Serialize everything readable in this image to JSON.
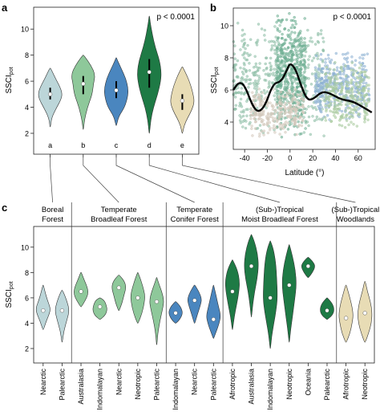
{
  "panels": {
    "a": {
      "label": "a",
      "annotation": "p < 0.0001",
      "ylabel": "SSCI",
      "ylabel_sub": "pot",
      "ylim": [
        2,
        11
      ],
      "yticks": [
        "2",
        "4",
        "6",
        "8",
        "10"
      ],
      "groups": [
        {
          "letter": "a",
          "color": "#bcd6d9",
          "min": 2.5,
          "max": 7.0,
          "median": 5.0,
          "iqr": [
            4.6,
            5.5
          ],
          "shape": [
            [
              2.5,
              0.02
            ],
            [
              3.2,
              0.12
            ],
            [
              4.0,
              0.55
            ],
            [
              4.6,
              0.9
            ],
            [
              5.0,
              1.0
            ],
            [
              5.5,
              0.85
            ],
            [
              6.2,
              0.45
            ],
            [
              6.8,
              0.14
            ],
            [
              7.0,
              0.02
            ]
          ]
        },
        {
          "letter": "b",
          "color": "#8ec89a",
          "min": 2.3,
          "max": 8.0,
          "median": 5.8,
          "iqr": [
            5.0,
            6.4
          ],
          "shape": [
            [
              2.3,
              0.02
            ],
            [
              3.0,
              0.1
            ],
            [
              4.0,
              0.35
            ],
            [
              5.0,
              0.75
            ],
            [
              5.8,
              0.85
            ],
            [
              6.5,
              1.0
            ],
            [
              7.2,
              0.65
            ],
            [
              7.8,
              0.2
            ],
            [
              8.0,
              0.02
            ]
          ]
        },
        {
          "letter": "c",
          "color": "#4a86bf",
          "min": 2.6,
          "max": 7.8,
          "median": 5.3,
          "iqr": [
            4.7,
            6.0
          ],
          "shape": [
            [
              2.6,
              0.02
            ],
            [
              3.3,
              0.2
            ],
            [
              4.0,
              0.7
            ],
            [
              4.8,
              0.95
            ],
            [
              5.4,
              1.0
            ],
            [
              6.2,
              0.8
            ],
            [
              7.0,
              0.4
            ],
            [
              7.6,
              0.1
            ],
            [
              7.8,
              0.02
            ]
          ]
        },
        {
          "letter": "d",
          "color": "#1e7a45",
          "min": 2.0,
          "max": 11.0,
          "median": 6.7,
          "iqr": [
            5.5,
            7.7
          ],
          "shape": [
            [
              2.0,
              0.02
            ],
            [
              3.0,
              0.12
            ],
            [
              4.0,
              0.35
            ],
            [
              5.0,
              0.7
            ],
            [
              6.0,
              0.95
            ],
            [
              6.7,
              1.0
            ],
            [
              7.6,
              0.85
            ],
            [
              8.6,
              0.5
            ],
            [
              9.6,
              0.25
            ],
            [
              10.5,
              0.08
            ],
            [
              11.0,
              0.02
            ]
          ]
        },
        {
          "letter": "e",
          "color": "#e8dcb5",
          "min": 2.0,
          "max": 7.1,
          "median": 4.5,
          "iqr": [
            3.8,
            5.0
          ],
          "shape": [
            [
              2.0,
              0.02
            ],
            [
              2.6,
              0.15
            ],
            [
              3.2,
              0.45
            ],
            [
              3.8,
              0.8
            ],
            [
              4.4,
              1.0
            ],
            [
              5.0,
              0.9
            ],
            [
              5.7,
              0.7
            ],
            [
              6.4,
              0.4
            ],
            [
              7.0,
              0.08
            ],
            [
              7.1,
              0.02
            ]
          ]
        }
      ]
    },
    "b": {
      "label": "b",
      "annotation": "p < 0.0001",
      "ylabel": "SSCI",
      "ylabel_sub": "pot",
      "xlabel": "Latitude (°)",
      "xlim": [
        -50,
        75
      ],
      "ylim": [
        2.3,
        11.1
      ],
      "xticks": [
        -40,
        -20,
        0,
        20,
        40,
        60
      ],
      "yticks": [
        4,
        6,
        8,
        10
      ],
      "trend": [
        [
          -50,
          6.0
        ],
        [
          -45,
          6.5
        ],
        [
          -40,
          6.3
        ],
        [
          -33,
          5.0
        ],
        [
          -28,
          4.6
        ],
        [
          -22,
          5.0
        ],
        [
          -15,
          6.4
        ],
        [
          -8,
          6.5
        ],
        [
          -3,
          7.2
        ],
        [
          0,
          7.7
        ],
        [
          5,
          7.3
        ],
        [
          10,
          6.2
        ],
        [
          15,
          5.4
        ],
        [
          20,
          5.4
        ],
        [
          28,
          5.9
        ],
        [
          35,
          5.8
        ],
        [
          45,
          5.4
        ],
        [
          55,
          5.3
        ],
        [
          65,
          4.9
        ],
        [
          72,
          4.6
        ]
      ],
      "clouds": [
        {
          "color": "#8fbfa8",
          "x": [
            -50,
            30
          ],
          "y": [
            3.0,
            10.5
          ],
          "n": 520
        },
        {
          "color": "#6fae93",
          "x": [
            -12,
            14
          ],
          "y": [
            3.0,
            11.0
          ],
          "n": 420
        },
        {
          "color": "#d4c9bc",
          "x": [
            -35,
            12
          ],
          "y": [
            3.0,
            6.2
          ],
          "n": 260
        },
        {
          "color": "#8fb3d4",
          "x": [
            22,
            70
          ],
          "y": [
            4.0,
            8.6
          ],
          "n": 380
        },
        {
          "color": "#a9cba0",
          "x": [
            30,
            70
          ],
          "y": [
            3.5,
            7.8
          ],
          "n": 260
        }
      ]
    },
    "c": {
      "label": "c",
      "ylabel": "SSCI",
      "ylabel_sub": "pot",
      "ylim": [
        2,
        11
      ],
      "yticks": [
        "2",
        "4",
        "6",
        "8",
        "10"
      ],
      "biomes": [
        {
          "title_lines": [
            "Boreal",
            "Forest"
          ]
        },
        {
          "title_lines": [
            "Temperate",
            "Broadleaf Forest"
          ]
        },
        {
          "title_lines": [
            "Temperate",
            "Conifer Forest"
          ]
        },
        {
          "title_lines": [
            "(Sub-)Tropical",
            "Moist Broadleaf Forest"
          ]
        },
        {
          "title_lines": [
            "(Sub-)Tropical",
            "Woodlands"
          ]
        }
      ],
      "violins": [
        {
          "realm": "Nearctic",
          "biome": 0,
          "color": "#bcd6d9",
          "min": 3.5,
          "max": 7.0,
          "median": 5.0,
          "shape": [
            [
              3.5,
              0.05
            ],
            [
              4.2,
              0.45
            ],
            [
              4.8,
              0.9
            ],
            [
              5.2,
              1.0
            ],
            [
              5.8,
              0.6
            ],
            [
              6.5,
              0.25
            ],
            [
              7.0,
              0.03
            ]
          ]
        },
        {
          "realm": "Palearctic",
          "biome": 0,
          "color": "#bcd6d9",
          "min": 2.5,
          "max": 6.6,
          "median": 5.0,
          "shape": [
            [
              2.5,
              0.03
            ],
            [
              3.4,
              0.25
            ],
            [
              4.3,
              0.7
            ],
            [
              5.0,
              1.0
            ],
            [
              5.7,
              0.7
            ],
            [
              6.3,
              0.3
            ],
            [
              6.6,
              0.03
            ]
          ]
        },
        {
          "realm": "Australasia",
          "biome": 1,
          "color": "#8ec89a",
          "min": 5.3,
          "max": 8.0,
          "median": 6.5,
          "shape": [
            [
              5.3,
              0.05
            ],
            [
              5.8,
              0.6
            ],
            [
              6.3,
              1.0
            ],
            [
              6.8,
              0.9
            ],
            [
              7.4,
              0.45
            ],
            [
              8.0,
              0.05
            ]
          ]
        },
        {
          "realm": "Indomalayan",
          "biome": 1,
          "color": "#8ec89a",
          "min": 4.3,
          "max": 6.0,
          "median": 5.3,
          "shape": [
            [
              4.3,
              0.05
            ],
            [
              4.6,
              0.7
            ],
            [
              5.0,
              1.0
            ],
            [
              5.4,
              0.9
            ],
            [
              5.8,
              0.6
            ],
            [
              6.0,
              0.05
            ]
          ]
        },
        {
          "realm": "Nearctic",
          "biome": 1,
          "color": "#8ec89a",
          "min": 5.0,
          "max": 7.8,
          "median": 6.8,
          "shape": [
            [
              5.0,
              0.05
            ],
            [
              5.6,
              0.45
            ],
            [
              6.2,
              0.7
            ],
            [
              6.8,
              1.0
            ],
            [
              7.3,
              0.8
            ],
            [
              7.8,
              0.05
            ]
          ]
        },
        {
          "realm": "Neotropic",
          "biome": 1,
          "color": "#8ec89a",
          "min": 4.0,
          "max": 8.0,
          "median": 6.0,
          "shape": [
            [
              4.0,
              0.05
            ],
            [
              4.8,
              0.6
            ],
            [
              5.6,
              0.9
            ],
            [
              6.2,
              1.0
            ],
            [
              6.9,
              0.7
            ],
            [
              7.6,
              0.3
            ],
            [
              8.0,
              0.03
            ]
          ]
        },
        {
          "realm": "Palearctic",
          "biome": 1,
          "color": "#8ec89a",
          "min": 2.3,
          "max": 7.6,
          "median": 5.7,
          "shape": [
            [
              2.3,
              0.03
            ],
            [
              3.2,
              0.15
            ],
            [
              4.2,
              0.45
            ],
            [
              5.2,
              0.85
            ],
            [
              5.8,
              1.0
            ],
            [
              6.5,
              0.7
            ],
            [
              7.2,
              0.25
            ],
            [
              7.6,
              0.03
            ]
          ]
        },
        {
          "realm": "Indomalayan",
          "biome": 2,
          "color": "#4a86bf",
          "min": 4.0,
          "max": 5.7,
          "median": 4.8,
          "shape": [
            [
              4.0,
              0.05
            ],
            [
              4.3,
              0.6
            ],
            [
              4.8,
              1.0
            ],
            [
              5.3,
              0.7
            ],
            [
              5.7,
              0.05
            ]
          ]
        },
        {
          "realm": "Nearctic",
          "biome": 2,
          "color": "#4a86bf",
          "min": 4.0,
          "max": 7.0,
          "median": 5.8,
          "shape": [
            [
              4.0,
              0.05
            ],
            [
              4.7,
              0.4
            ],
            [
              5.4,
              0.8
            ],
            [
              5.9,
              1.0
            ],
            [
              6.5,
              0.6
            ],
            [
              7.0,
              0.05
            ]
          ]
        },
        {
          "realm": "Palearctic",
          "biome": 2,
          "color": "#4a86bf",
          "min": 2.8,
          "max": 7.0,
          "median": 4.3,
          "shape": [
            [
              2.8,
              0.03
            ],
            [
              3.3,
              0.35
            ],
            [
              4.0,
              0.8
            ],
            [
              4.6,
              1.0
            ],
            [
              5.3,
              0.7
            ],
            [
              6.2,
              0.35
            ],
            [
              7.0,
              0.03
            ]
          ]
        },
        {
          "realm": "Afrotropic",
          "biome": 3,
          "color": "#1e7a45",
          "min": 3.5,
          "max": 9.0,
          "median": 6.5,
          "shape": [
            [
              3.5,
              0.03
            ],
            [
              4.5,
              0.25
            ],
            [
              5.5,
              0.6
            ],
            [
              6.5,
              0.9
            ],
            [
              7.3,
              1.0
            ],
            [
              8.2,
              0.7
            ],
            [
              9.0,
              0.03
            ]
          ]
        },
        {
          "realm": "Australasia",
          "biome": 3,
          "color": "#1e7a45",
          "min": 4.5,
          "max": 11.0,
          "median": 8.5,
          "shape": [
            [
              4.5,
              0.03
            ],
            [
              5.5,
              0.2
            ],
            [
              6.5,
              0.45
            ],
            [
              7.5,
              0.8
            ],
            [
              8.5,
              1.0
            ],
            [
              9.5,
              0.85
            ],
            [
              10.4,
              0.45
            ],
            [
              11.0,
              0.03
            ]
          ]
        },
        {
          "realm": "Indomalayan",
          "biome": 3,
          "color": "#1e7a45",
          "min": 2.0,
          "max": 10.5,
          "median": 6.0,
          "shape": [
            [
              2.0,
              0.03
            ],
            [
              3.0,
              0.2
            ],
            [
              4.0,
              0.5
            ],
            [
              5.0,
              0.8
            ],
            [
              6.0,
              1.0
            ],
            [
              7.5,
              0.9
            ],
            [
              8.8,
              0.75
            ],
            [
              9.8,
              0.45
            ],
            [
              10.5,
              0.03
            ]
          ]
        },
        {
          "realm": "Neotropic",
          "biome": 3,
          "color": "#1e7a45",
          "min": 2.5,
          "max": 10.2,
          "median": 7.0,
          "shape": [
            [
              2.5,
              0.03
            ],
            [
              3.5,
              0.2
            ],
            [
              4.5,
              0.45
            ],
            [
              5.8,
              0.75
            ],
            [
              7.0,
              1.0
            ],
            [
              8.2,
              0.85
            ],
            [
              9.3,
              0.45
            ],
            [
              10.2,
              0.03
            ]
          ]
        },
        {
          "realm": "Oceania",
          "biome": 3,
          "color": "#1e7a45",
          "min": 7.6,
          "max": 9.2,
          "median": 8.5,
          "shape": [
            [
              7.6,
              0.05
            ],
            [
              8.0,
              0.6
            ],
            [
              8.5,
              1.0
            ],
            [
              8.9,
              0.6
            ],
            [
              9.2,
              0.05
            ]
          ]
        },
        {
          "realm": "Palearctic",
          "biome": 3,
          "color": "#1e7a45",
          "min": 4.3,
          "max": 6.0,
          "median": 5.0,
          "shape": [
            [
              4.3,
              0.05
            ],
            [
              4.6,
              0.7
            ],
            [
              5.0,
              1.0
            ],
            [
              5.5,
              0.8
            ],
            [
              6.0,
              0.05
            ]
          ]
        },
        {
          "realm": "Afrotropic",
          "biome": 4,
          "color": "#e8dcb5",
          "min": 2.5,
          "max": 7.0,
          "median": 4.4,
          "shape": [
            [
              2.5,
              0.05
            ],
            [
              3.2,
              0.55
            ],
            [
              4.0,
              0.85
            ],
            [
              4.6,
              1.0
            ],
            [
              5.3,
              0.85
            ],
            [
              6.2,
              0.45
            ],
            [
              7.0,
              0.05
            ]
          ]
        },
        {
          "realm": "Neotropic",
          "biome": 4,
          "color": "#e8dcb5",
          "min": 2.5,
          "max": 7.3,
          "median": 4.8,
          "shape": [
            [
              2.5,
              0.05
            ],
            [
              3.2,
              0.5
            ],
            [
              4.0,
              0.9
            ],
            [
              4.8,
              1.0
            ],
            [
              5.6,
              0.8
            ],
            [
              6.5,
              0.35
            ],
            [
              7.3,
              0.05
            ]
          ]
        }
      ]
    }
  }
}
